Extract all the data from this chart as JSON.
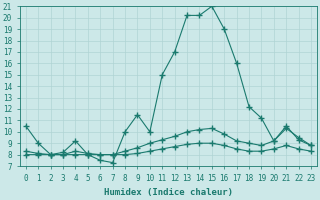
{
  "xlabel": "Humidex (Indice chaleur)",
  "bg_color": "#cce8e8",
  "line_color": "#1a7a6e",
  "grid_color": "#b0d4d4",
  "xlim": [
    -0.5,
    23.5
  ],
  "ylim": [
    7,
    21
  ],
  "yticks": [
    7,
    8,
    9,
    10,
    11,
    12,
    13,
    14,
    15,
    16,
    17,
    18,
    19,
    20,
    21
  ],
  "xticks": [
    0,
    1,
    2,
    3,
    4,
    5,
    6,
    7,
    8,
    9,
    10,
    11,
    12,
    13,
    14,
    15,
    16,
    17,
    18,
    19,
    20,
    21,
    22,
    23
  ],
  "line1_x": [
    0,
    1,
    2,
    3,
    4,
    5,
    6,
    7,
    8,
    9,
    10,
    11,
    12,
    13,
    14,
    15,
    16,
    17,
    18,
    19,
    20,
    21,
    22,
    23
  ],
  "line1_y": [
    10.5,
    9.0,
    8.0,
    8.2,
    9.2,
    8.0,
    7.5,
    7.3,
    10.0,
    11.5,
    10.0,
    15.0,
    17.0,
    20.2,
    20.2,
    21.0,
    19.0,
    16.0,
    12.2,
    11.2,
    9.2,
    10.3,
    9.5,
    8.8
  ],
  "line2_x": [
    0,
    1,
    2,
    3,
    4,
    5,
    6,
    7,
    8,
    9,
    10,
    11,
    12,
    13,
    14,
    15,
    16,
    17,
    18,
    19,
    20,
    21,
    22,
    23
  ],
  "line2_y": [
    8.3,
    8.1,
    8.0,
    8.0,
    8.3,
    8.1,
    8.0,
    8.0,
    8.3,
    8.6,
    9.0,
    9.3,
    9.6,
    10.0,
    10.2,
    10.3,
    9.8,
    9.2,
    9.0,
    8.8,
    9.2,
    10.5,
    9.3,
    8.8
  ],
  "line3_x": [
    0,
    1,
    2,
    3,
    4,
    5,
    6,
    7,
    8,
    9,
    10,
    11,
    12,
    13,
    14,
    15,
    16,
    17,
    18,
    19,
    20,
    21,
    22,
    23
  ],
  "line3_y": [
    8.0,
    8.0,
    8.0,
    8.0,
    8.0,
    8.0,
    8.0,
    8.0,
    8.0,
    8.1,
    8.3,
    8.5,
    8.7,
    8.9,
    9.0,
    9.0,
    8.8,
    8.5,
    8.3,
    8.3,
    8.5,
    8.8,
    8.5,
    8.3
  ]
}
